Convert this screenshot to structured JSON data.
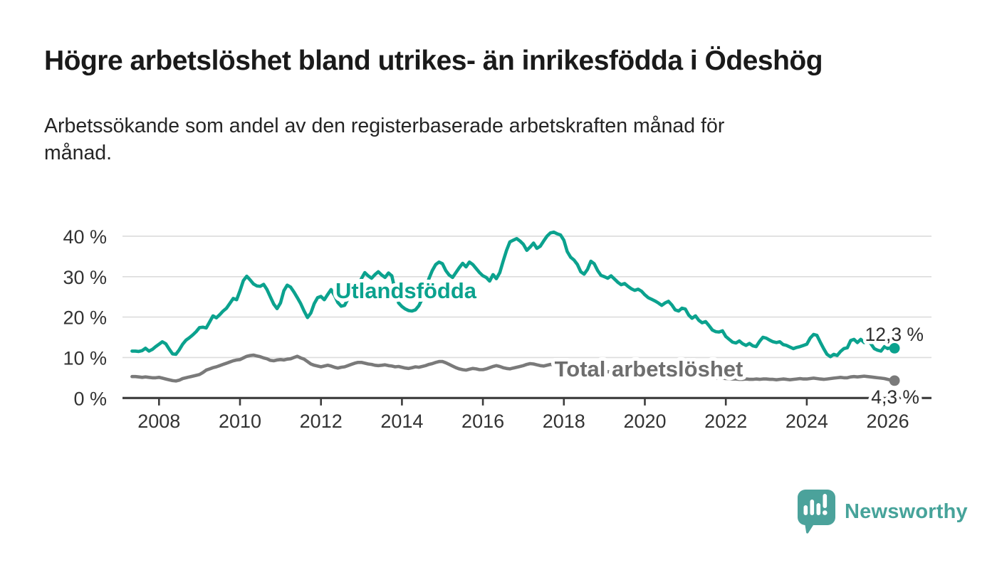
{
  "header": {
    "title": "Högre arbetslöshet bland utrikes- än inrikesfödda i Ödeshög",
    "subtitle_lines": [
      "Arbetssökande som andel av den registerbaserade arbetskraften månad för",
      "månad."
    ]
  },
  "chart_data": {
    "type": "line",
    "unit": "%",
    "frequency": "monthly",
    "x_start": "2007-05",
    "x_end": "2026-03",
    "ylim": [
      0,
      44
    ],
    "grid": true,
    "grid_color": "#dcdcdc",
    "axis_color": "#3c3c3c",
    "tick_label_color": "#333333",
    "legend_position": "inline-labels-on-lines",
    "yticks": [
      {
        "value": 0,
        "label": "0 %"
      },
      {
        "value": 10,
        "label": "10 %"
      },
      {
        "value": 20,
        "label": "20 %"
      },
      {
        "value": 30,
        "label": "30 %"
      },
      {
        "value": 40,
        "label": "40 %"
      }
    ],
    "xticks": [
      {
        "year": 2008,
        "label": "2008"
      },
      {
        "year": 2010,
        "label": "2010"
      },
      {
        "year": 2012,
        "label": "2012"
      },
      {
        "year": 2014,
        "label": "2014"
      },
      {
        "year": 2016,
        "label": "2016"
      },
      {
        "year": 2018,
        "label": "2018"
      },
      {
        "year": 2020,
        "label": "2020"
      },
      {
        "year": 2022,
        "label": "2022"
      },
      {
        "year": 2024,
        "label": "2024"
      },
      {
        "year": 2026,
        "label": "2026"
      }
    ],
    "series": [
      {
        "name": "Utlandsfödda",
        "color": "#0ba28e",
        "end_label": "12,3 %",
        "end_value": 12.3,
        "values": [
          11.6,
          11.6,
          11.5,
          11.7,
          12.3,
          11.6,
          12.0,
          12.7,
          13.3,
          13.9,
          13.4,
          12.1,
          10.9,
          10.8,
          11.9,
          13.3,
          14.3,
          14.9,
          15.6,
          16.4,
          17.4,
          17.5,
          17.3,
          18.8,
          20.3,
          19.8,
          20.6,
          21.5,
          22.2,
          23.4,
          24.6,
          24.3,
          26.5,
          29.0,
          30.1,
          29.2,
          28.2,
          27.7,
          27.6,
          28.1,
          26.8,
          25.0,
          23.2,
          22.1,
          23.5,
          26.5,
          27.9,
          27.4,
          26.2,
          24.8,
          23.3,
          21.5,
          19.9,
          21.0,
          23.3,
          24.8,
          25.1,
          24.3,
          25.6,
          26.8,
          25.4,
          23.6,
          22.7,
          22.9,
          24.5,
          25.9,
          27.2,
          27.9,
          29.5,
          31.0,
          30.2,
          29.6,
          30.5,
          31.2,
          30.4,
          29.8,
          30.9,
          30.2,
          26.5,
          23.5,
          22.6,
          22.0,
          21.6,
          21.5,
          21.8,
          22.8,
          24.5,
          27.0,
          29.5,
          31.5,
          33.0,
          33.6,
          33.2,
          31.5,
          30.4,
          29.8,
          31.0,
          32.2,
          33.3,
          32.4,
          33.6,
          33.0,
          32.0,
          31.0,
          30.2,
          29.8,
          28.9,
          30.5,
          29.5,
          31.0,
          33.8,
          36.5,
          38.6,
          39.0,
          39.4,
          38.8,
          38.0,
          36.5,
          37.3,
          38.3,
          37.0,
          37.5,
          38.8,
          40.0,
          40.8,
          41.0,
          40.6,
          40.3,
          39.0,
          36.2,
          34.8,
          34.1,
          33.0,
          31.2,
          30.6,
          31.8,
          33.8,
          33.2,
          31.5,
          30.3,
          30.0,
          29.6,
          30.2,
          29.4,
          28.6,
          28.0,
          28.3,
          27.6,
          27.0,
          26.6,
          26.9,
          26.4,
          25.5,
          24.8,
          24.4,
          24.0,
          23.5,
          22.9,
          23.5,
          23.9,
          23.0,
          21.8,
          21.5,
          22.2,
          22.0,
          20.5,
          19.7,
          20.3,
          19.2,
          18.6,
          18.9,
          17.9,
          16.8,
          16.4,
          16.3,
          16.6,
          15.2,
          14.5,
          13.8,
          13.6,
          14.1,
          13.4,
          13.0,
          13.5,
          12.9,
          12.7,
          14.0,
          15.0,
          14.8,
          14.3,
          13.9,
          13.7,
          13.9,
          13.2,
          13.0,
          12.6,
          12.2,
          12.5,
          12.7,
          13.0,
          13.3,
          14.8,
          15.7,
          15.5,
          13.8,
          12.2,
          10.8,
          10.2,
          10.8,
          10.5,
          11.5,
          12.2,
          12.4,
          14.2,
          14.5,
          13.7,
          14.5,
          13.7,
          14.2,
          13.4,
          12.2,
          11.8,
          11.6,
          12.7,
          12.2,
          12.6,
          12.3
        ]
      },
      {
        "name": "Total arbetslöshet",
        "color": "#7a7a7a",
        "label_color": "#6e6e6e",
        "end_label": "4,3 %",
        "end_value": 4.3,
        "values": [
          5.3,
          5.3,
          5.2,
          5.1,
          5.2,
          5.1,
          5.0,
          5.0,
          5.1,
          4.9,
          4.7,
          4.5,
          4.3,
          4.2,
          4.4,
          4.8,
          5.0,
          5.2,
          5.4,
          5.6,
          5.8,
          6.3,
          6.9,
          7.2,
          7.5,
          7.7,
          8.0,
          8.3,
          8.6,
          8.9,
          9.2,
          9.4,
          9.5,
          9.9,
          10.3,
          10.5,
          10.6,
          10.4,
          10.2,
          9.9,
          9.7,
          9.3,
          9.2,
          9.4,
          9.5,
          9.4,
          9.6,
          9.7,
          10.0,
          10.3,
          9.9,
          9.6,
          9.0,
          8.4,
          8.1,
          7.9,
          7.7,
          7.9,
          8.1,
          7.9,
          7.6,
          7.4,
          7.6,
          7.7,
          8.0,
          8.3,
          8.6,
          8.8,
          8.8,
          8.6,
          8.4,
          8.3,
          8.1,
          8.0,
          8.1,
          8.2,
          8.0,
          7.9,
          7.7,
          7.8,
          7.6,
          7.4,
          7.3,
          7.5,
          7.7,
          7.6,
          7.8,
          8.0,
          8.3,
          8.5,
          8.8,
          9.0,
          9.0,
          8.7,
          8.3,
          7.9,
          7.5,
          7.2,
          7.0,
          6.9,
          7.1,
          7.3,
          7.2,
          7.0,
          7.0,
          7.2,
          7.5,
          7.8,
          8.0,
          7.8,
          7.5,
          7.3,
          7.2,
          7.4,
          7.6,
          7.8,
          8.0,
          8.3,
          8.5,
          8.4,
          8.2,
          8.0,
          7.9,
          8.1,
          8.3,
          8.2,
          8.0,
          7.9,
          7.8,
          7.6,
          7.4,
          7.2,
          7.0,
          6.9,
          6.8,
          6.9,
          7.0,
          6.9,
          6.8,
          6.7,
          6.6,
          6.5,
          6.4,
          6.3,
          6.2,
          6.2,
          6.3,
          6.2,
          6.1,
          6.0,
          6.0,
          6.1,
          6.2,
          6.3,
          6.6,
          7.0,
          7.2,
          7.3,
          7.2,
          7.0,
          6.8,
          6.6,
          6.4,
          6.3,
          6.2,
          6.0,
          5.9,
          5.7,
          5.6,
          5.4,
          5.3,
          5.2,
          5.1,
          5.0,
          4.9,
          4.9,
          4.8,
          4.8,
          4.7,
          4.7,
          4.6,
          4.6,
          4.7,
          4.6,
          4.6,
          4.7,
          4.6,
          4.7,
          4.7,
          4.6,
          4.6,
          4.5,
          4.6,
          4.7,
          4.6,
          4.5,
          4.6,
          4.7,
          4.8,
          4.7,
          4.7,
          4.8,
          4.9,
          4.8,
          4.7,
          4.6,
          4.7,
          4.8,
          4.9,
          5.0,
          5.1,
          5.0,
          5.0,
          5.2,
          5.3,
          5.2,
          5.3,
          5.4,
          5.3,
          5.2,
          5.1,
          5.0,
          4.9,
          4.8,
          4.6,
          4.4,
          4.3
        ]
      }
    ]
  },
  "footer": {
    "brand": "Newsworthy",
    "brand_color": "#46a39a",
    "logo_icon": "newsworthy-speech-bubble-chart-icon",
    "logo_icon_color": "#4ba29b"
  }
}
